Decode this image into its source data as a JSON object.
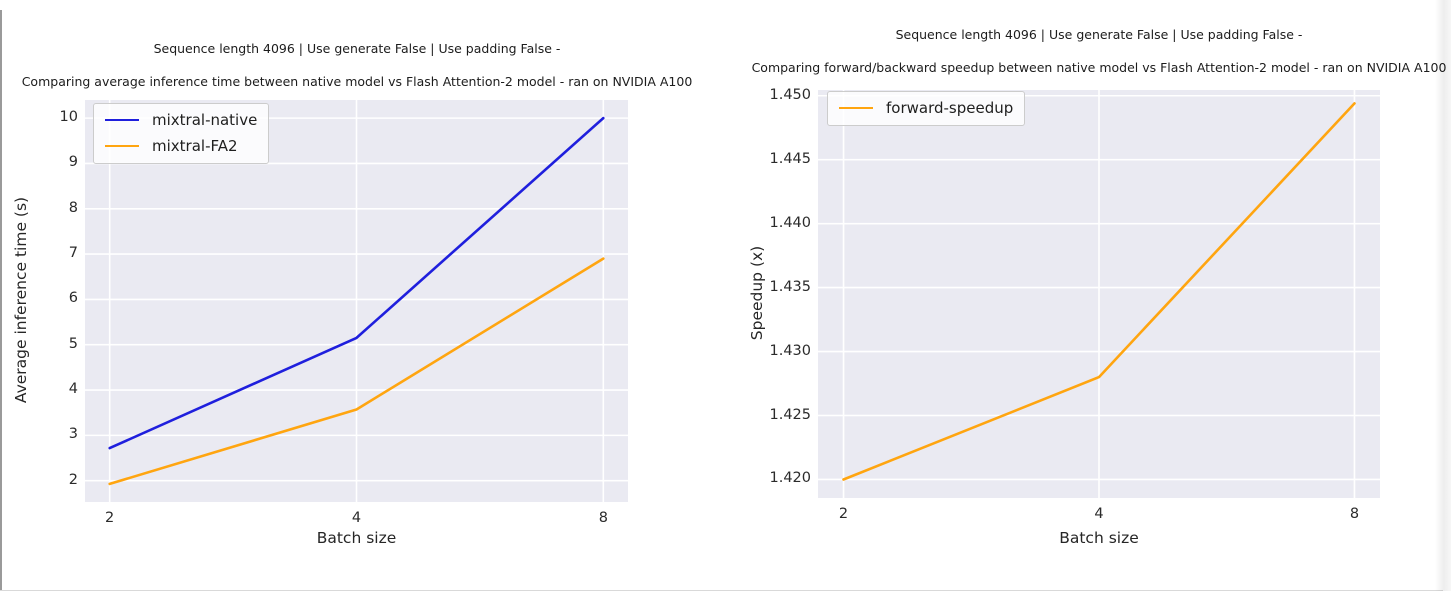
{
  "page": {
    "background": "#ffffff",
    "kind": "matplotlib-figure-screenshot"
  },
  "colors": {
    "plot_background": "#eaeaf2",
    "gridline": "#ffffff",
    "blue_series": "#1f1fdd",
    "orange_series": "#ffa510",
    "text_title": "#1c1c1c",
    "text_tick": "#2b2b2b"
  },
  "chart_data": [
    {
      "type": "line",
      "suptitle": "Sequence length 4096 | Use generate False | Use padding False -",
      "title": "Comparing average inference time between native model vs Flash Attention-2 model - ran on NVIDIA A100",
      "xlabel": "Batch size",
      "ylabel": "Average inference time (s)",
      "x": [
        2,
        4,
        8
      ],
      "xscale": "log2",
      "xticks": [
        2,
        4,
        8
      ],
      "yticks": [
        2,
        3,
        4,
        5,
        6,
        7,
        8,
        9,
        10
      ],
      "ytick_decimals": 0,
      "ylim": [
        1.53,
        10.4
      ],
      "xlim_log2": [
        0.9,
        3.1
      ],
      "grid": true,
      "legend_position": "upper left",
      "series": [
        {
          "name": "mixtral-native",
          "color": "#1f1fdd",
          "values": [
            2.72,
            5.15,
            10.0
          ]
        },
        {
          "name": "mixtral-FA2",
          "color": "#ffa510",
          "values": [
            1.93,
            3.57,
            6.9
          ]
        }
      ]
    },
    {
      "type": "line",
      "suptitle": "Sequence length 4096 | Use generate False | Use padding False -",
      "title": "Comparing forward/backward speedup between native model vs Flash Attention-2 model - ran on NVIDIA A100",
      "xlabel": "Batch size",
      "ylabel": "Speedup (x)",
      "x": [
        2,
        4,
        8
      ],
      "xscale": "log2",
      "xticks": [
        2,
        4,
        8
      ],
      "yticks": [
        1.42,
        1.425,
        1.43,
        1.435,
        1.44,
        1.445,
        1.45
      ],
      "ytick_decimals": 3,
      "ylim": [
        1.41855,
        1.45045
      ],
      "xlim_log2": [
        0.9,
        3.1
      ],
      "grid": true,
      "legend_position": "upper left",
      "series": [
        {
          "name": "forward-speedup",
          "color": "#ffa510",
          "values": [
            1.42,
            1.428,
            1.4494
          ]
        }
      ]
    }
  ]
}
